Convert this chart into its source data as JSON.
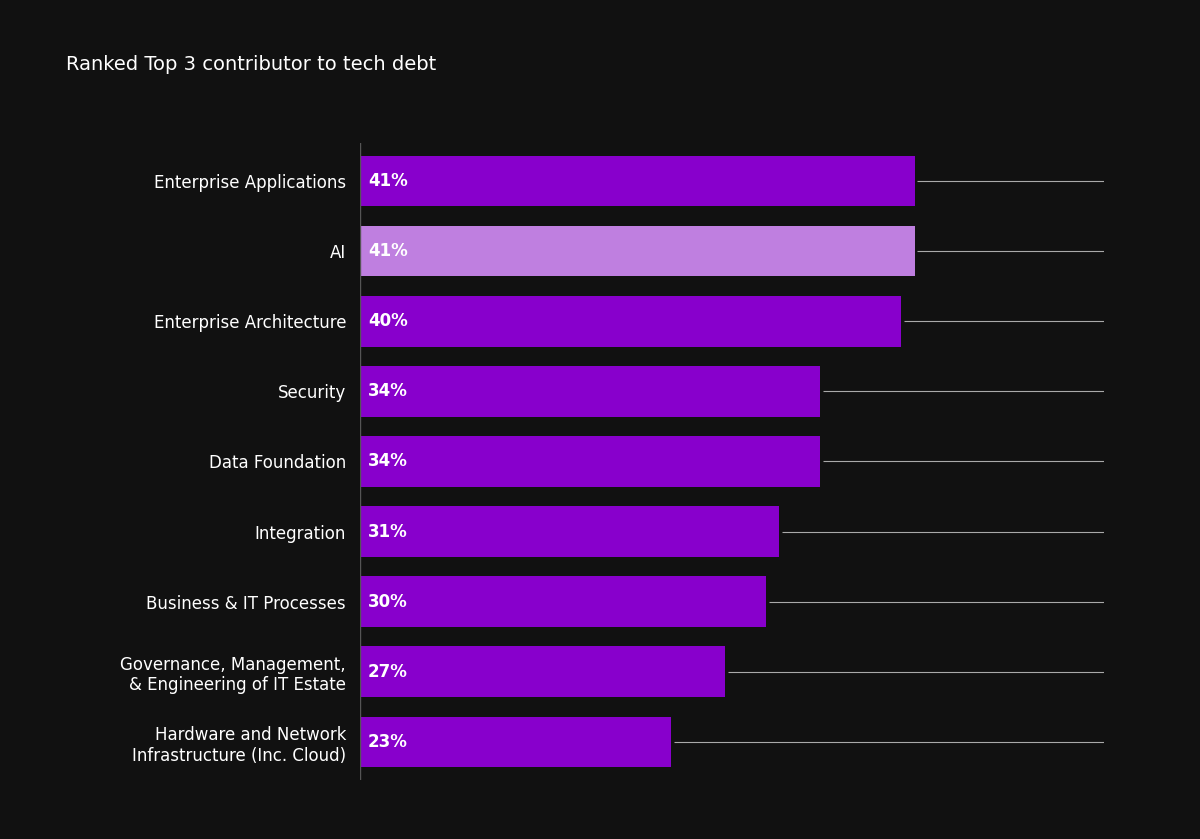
{
  "title": "Ranked Top 3 contributor to tech debt",
  "categories": [
    "Hardware and Network\nInfrastructure (Inc. Cloud)",
    "Governance, Management,\n& Engineering of IT Estate",
    "Business & IT Processes",
    "Integration",
    "Data Foundation",
    "Security",
    "Enterprise Architecture",
    "AI",
    "Enterprise Applications"
  ],
  "values": [
    23,
    27,
    30,
    31,
    34,
    34,
    40,
    41,
    41
  ],
  "bar_colors": [
    "#8800cc",
    "#8800cc",
    "#8800cc",
    "#8800cc",
    "#8800cc",
    "#8800cc",
    "#8800cc",
    "#bf7fe0",
    "#8800cc"
  ],
  "bar_labels": [
    "23%",
    "27%",
    "30%",
    "31%",
    "34%",
    "34%",
    "40%",
    "41%",
    "41%"
  ],
  "background_color": "#111111",
  "text_color": "#ffffff",
  "title_fontsize": 14,
  "label_fontsize": 12,
  "bar_label_fontsize": 12,
  "xlim": [
    0,
    55
  ],
  "line_color": "#aaaaaa",
  "vline_color": "#555555"
}
